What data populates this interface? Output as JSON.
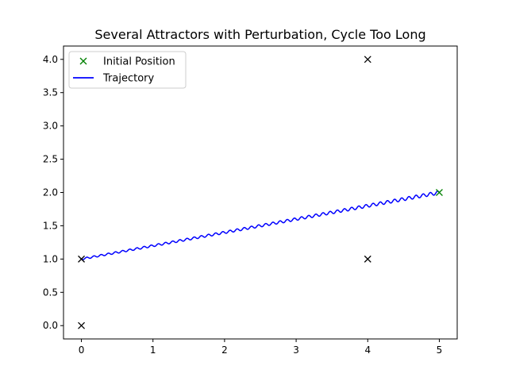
{
  "chart_data": {
    "type": "line",
    "title": "Several Attractors with Perturbation, Cycle Too Long",
    "xlabel": "",
    "ylabel": "",
    "xlim": [
      -0.25,
      5.25
    ],
    "ylim": [
      -0.2,
      4.2
    ],
    "x_ticks": [
      0,
      1,
      2,
      3,
      4,
      5
    ],
    "x_tick_labels": [
      "0",
      "1",
      "2",
      "3",
      "4",
      "5"
    ],
    "y_ticks": [
      0.0,
      0.5,
      1.0,
      1.5,
      2.0,
      2.5,
      3.0,
      3.5,
      4.0
    ],
    "y_tick_labels": [
      "0.0",
      "0.5",
      "1.0",
      "1.5",
      "2.0",
      "2.5",
      "3.0",
      "3.5",
      "4.0"
    ],
    "grid": false,
    "legend": {
      "placement": "top-left",
      "entries": [
        {
          "label": "Initial Position",
          "marker": "x",
          "color": "#008000"
        },
        {
          "label": "Trajectory",
          "marker": "line",
          "color": "#0000ff"
        }
      ]
    },
    "attractors": {
      "color": "#000000",
      "points": [
        {
          "x": 0,
          "y": 0
        },
        {
          "x": 0,
          "y": 1
        },
        {
          "x": 4,
          "y": 1
        },
        {
          "x": 4,
          "y": 4
        }
      ]
    },
    "initial_position": {
      "x": 5,
      "y": 2,
      "color": "#008000"
    },
    "trajectory": {
      "name": "Trajectory",
      "color": "#0000ff",
      "start": {
        "x": 5,
        "y": 2
      },
      "end": {
        "x": 0,
        "y": 1
      },
      "oscillation_amplitude": 0.025,
      "oscillation_cycles": 50
    }
  }
}
